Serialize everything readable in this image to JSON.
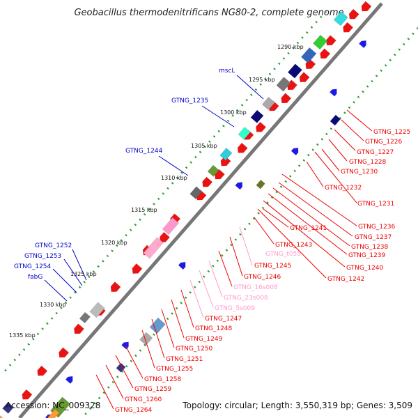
{
  "title": "Geobacillus thermodenitrificans NG80-2, complete genome",
  "footer": {
    "accession": "Accession: NC_009328",
    "topology": "Topology: circular; Length: 3,550,319 bp; Genes: 3,509"
  },
  "colors": {
    "backbone": "#666666",
    "ticks": "#229922",
    "forward_label": "#0000cc",
    "reverse_label": "#ee0000",
    "rna_label": "#ff99cc"
  },
  "ticks": [
    {
      "label": "1290 kbp"
    },
    {
      "label": "1295 kbp"
    },
    {
      "label": "1300 kbp"
    },
    {
      "label": "1305 kbp"
    },
    {
      "label": "1310 kbp"
    },
    {
      "label": "1315 kbp"
    },
    {
      "label": "1320 kbp"
    },
    {
      "label": "1325 kbp"
    },
    {
      "label": "1330 kbp"
    },
    {
      "label": "1335 kbp"
    }
  ],
  "forward_labels": [
    {
      "text": "mscL"
    },
    {
      "text": "GTNG_1235"
    },
    {
      "text": "GTNG_1244"
    },
    {
      "text": "GTNG_1252"
    },
    {
      "text": "GTNG_1253"
    },
    {
      "text": "GTNG_1254"
    },
    {
      "text": "fabG"
    }
  ],
  "reverse_labels": [
    {
      "text": "GTNG_1225"
    },
    {
      "text": "GTNG_1226"
    },
    {
      "text": "GTNG_1227"
    },
    {
      "text": "GTNG_1228"
    },
    {
      "text": "GTNG_1230"
    },
    {
      "text": "GTNG_1232"
    },
    {
      "text": "GTNG_1231"
    },
    {
      "text": "GTNG_1236"
    },
    {
      "text": "GTNG_1237"
    },
    {
      "text": "GTNG_1238"
    },
    {
      "text": "GTNG_1239"
    },
    {
      "text": "GTNG_1240"
    },
    {
      "text": "GTNG_1242"
    },
    {
      "text": "GTNG_1241"
    },
    {
      "text": "GTNG_1243"
    },
    {
      "text": "GTNG_t055"
    },
    {
      "text": "GTNG_1245"
    },
    {
      "text": "GTNG_1246"
    },
    {
      "text": "GTNG_16s008"
    },
    {
      "text": "GTNG_23s008"
    },
    {
      "text": "GTNG_5s009"
    },
    {
      "text": "GTNG_1247"
    },
    {
      "text": "GTNG_1248"
    },
    {
      "text": "GTNG_1249"
    },
    {
      "text": "GTNG_1250"
    },
    {
      "text": "GTNG_1251"
    },
    {
      "text": "GTNG_1255"
    },
    {
      "text": "GTNG_1258"
    },
    {
      "text": "GTNG_1259"
    },
    {
      "text": "GTNG_1260"
    },
    {
      "text": "GTNG_1264"
    }
  ]
}
